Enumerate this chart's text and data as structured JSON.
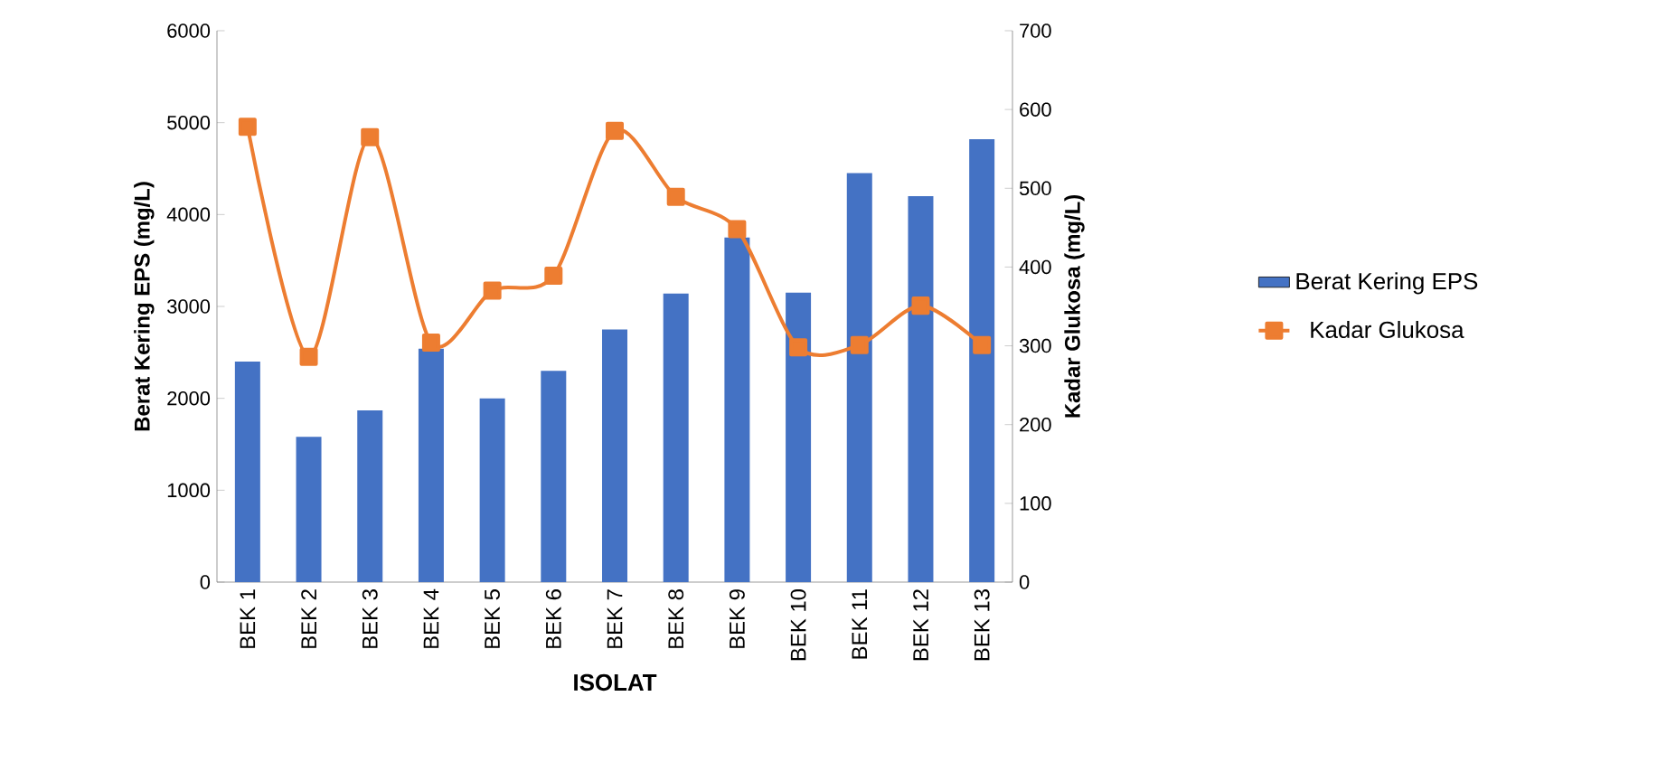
{
  "chart_data": {
    "type": "bar",
    "xlabel": "ISOLAT",
    "ylabel": "Berat Kering EPS  (mg/L)",
    "y2label": "Kadar Glukosa  (mg/L)",
    "categories": [
      "BEK 1",
      "BEK 2",
      "BEK 3",
      "BEK 4",
      "BEK 5",
      "BEK 6",
      "BEK 7",
      "BEK 8",
      "BEK 9",
      "BEK 10",
      "BEK 11",
      "BEK 12",
      "BEK 13"
    ],
    "series": [
      {
        "name": "Berat Kering EPS",
        "color": "#4472c4",
        "values": [
          2400,
          1580,
          1870,
          2540,
          2000,
          2300,
          2750,
          3140,
          3750,
          3150,
          4450,
          4200,
          4820
        ]
      },
      {
        "name": "Kadar Glukosa",
        "type": "line",
        "axis": "y2",
        "color": "#ed7d31",
        "marker": "square",
        "values": [
          578,
          286,
          565,
          304,
          370,
          389,
          573,
          489,
          448,
          298,
          301,
          351,
          301
        ]
      }
    ],
    "ylim": [
      0,
      6000
    ],
    "yticks": [
      0,
      1000,
      2000,
      3000,
      4000,
      5000,
      6000
    ],
    "y2lim": [
      0,
      700
    ],
    "y2ticks": [
      0,
      100,
      200,
      300,
      400,
      500,
      600,
      700
    ],
    "grid": false,
    "legend": "right"
  }
}
